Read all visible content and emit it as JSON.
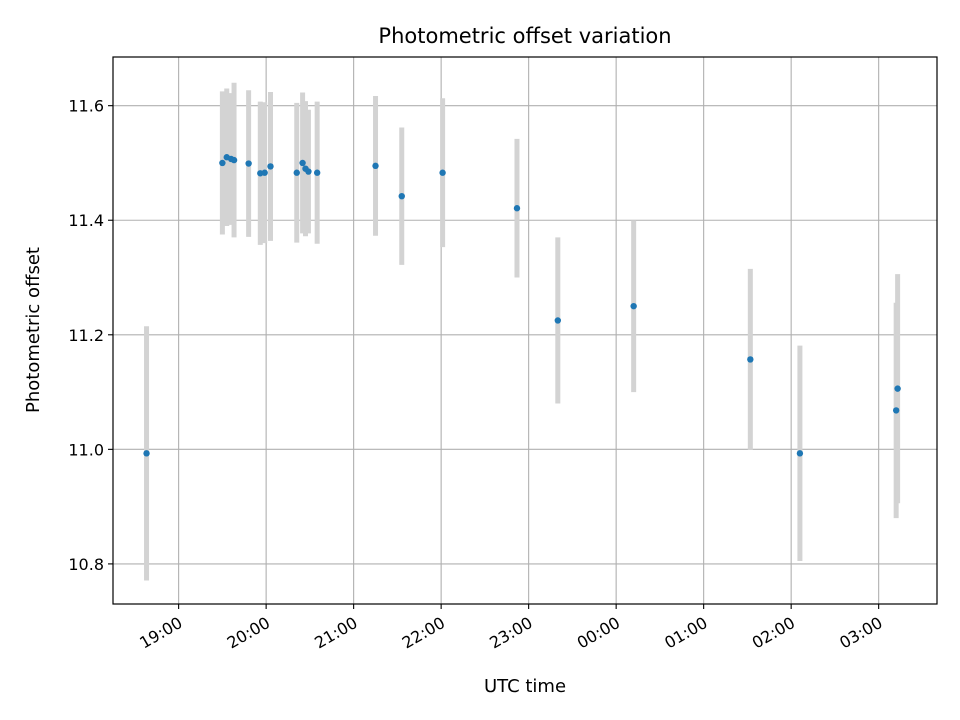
{
  "chart_data": {
    "type": "scatter",
    "title": "Photometric offset variation",
    "xlabel": "UTC time",
    "ylabel": "Photometric offset",
    "grid": true,
    "x_ticks": [
      "19:00",
      "20:00",
      "21:00",
      "22:00",
      "23:00",
      "00:00",
      "01:00",
      "02:00",
      "03:00"
    ],
    "x_range": [
      "18:15",
      "03:40"
    ],
    "y_ticks": [
      "10.8",
      "11.0",
      "11.2",
      "11.4",
      "11.6"
    ],
    "ylim": [
      10.73,
      11.685
    ],
    "colors": {
      "point": "#1f77b4",
      "errorbar": "#d3d3d3",
      "grid": "#b0b0b0"
    },
    "series": [
      {
        "points": [
          {
            "x": "18:38",
            "y": 10.993,
            "yerr": 0.222
          },
          {
            "x": "19:30",
            "y": 11.5,
            "yerr": 0.125
          },
          {
            "x": "19:33",
            "y": 11.51,
            "yerr": 0.12
          },
          {
            "x": "19:36",
            "y": 11.507,
            "yerr": 0.115
          },
          {
            "x": "19:38",
            "y": 11.505,
            "yerr": 0.135
          },
          {
            "x": "19:48",
            "y": 11.499,
            "yerr": 0.128
          },
          {
            "x": "19:56",
            "y": 11.482,
            "yerr": 0.125
          },
          {
            "x": "19:59",
            "y": 11.483,
            "yerr": 0.123
          },
          {
            "x": "20:03",
            "y": 11.494,
            "yerr": 0.13
          },
          {
            "x": "20:21",
            "y": 11.483,
            "yerr": 0.122
          },
          {
            "x": "20:25",
            "y": 11.5,
            "yerr": 0.123
          },
          {
            "x": "20:27",
            "y": 11.49,
            "yerr": 0.118
          },
          {
            "x": "20:29",
            "y": 11.485,
            "yerr": 0.108
          },
          {
            "x": "20:35",
            "y": 11.483,
            "yerr": 0.124
          },
          {
            "x": "21:15",
            "y": 11.495,
            "yerr": 0.122
          },
          {
            "x": "21:33",
            "y": 11.442,
            "yerr": 0.12
          },
          {
            "x": "22:01",
            "y": 11.483,
            "yerr": 0.13
          },
          {
            "x": "22:52",
            "y": 11.421,
            "yerr": 0.121
          },
          {
            "x": "23:20",
            "y": 11.225,
            "yerr": 0.145
          },
          {
            "x": "00:12",
            "y": 11.25,
            "yerr": 0.15
          },
          {
            "x": "01:32",
            "y": 11.157,
            "yerr": 0.158
          },
          {
            "x": "02:06",
            "y": 10.993,
            "yerr": 0.188
          },
          {
            "x": "03:12",
            "y": 11.068,
            "yerr": 0.188
          },
          {
            "x": "03:13",
            "y": 11.106,
            "yerr": 0.2
          }
        ]
      }
    ]
  }
}
